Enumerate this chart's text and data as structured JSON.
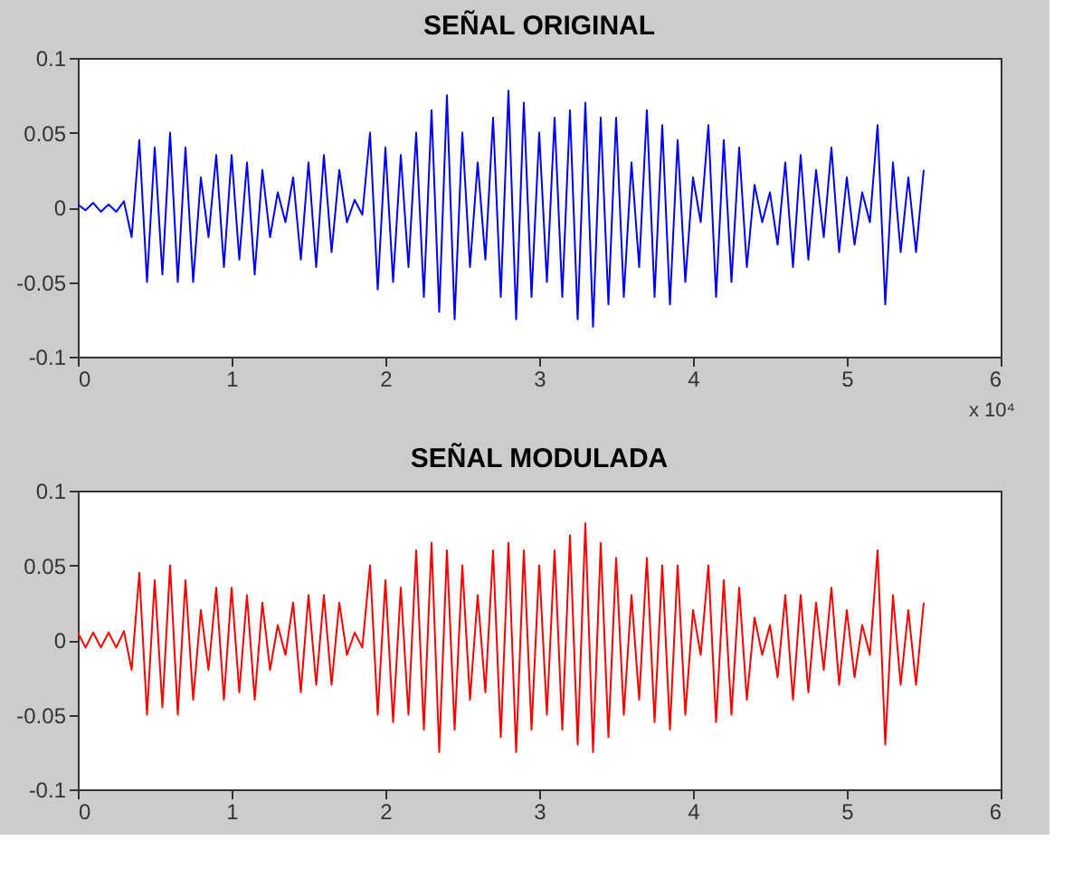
{
  "chart_data": [
    {
      "type": "line",
      "title": "SEÑAL ORIGINAL",
      "annotations": [
        "x 10⁴"
      ],
      "x": [
        0,
        0.05,
        0.1,
        0.15,
        0.2,
        0.25,
        0.3,
        0.35,
        0.4,
        0.45,
        0.5,
        0.55,
        0.6,
        0.65,
        0.7,
        0.75,
        0.8,
        0.85,
        0.9,
        0.95,
        1,
        1.05,
        1.1,
        1.15,
        1.2,
        1.25,
        1.3,
        1.35,
        1.4,
        1.45,
        1.5,
        1.55,
        1.6,
        1.65,
        1.7,
        1.75,
        1.8,
        1.85,
        1.9,
        1.95,
        2,
        2.05,
        2.1,
        2.15,
        2.2,
        2.25,
        2.3,
        2.35,
        2.4,
        2.45,
        2.5,
        2.55,
        2.6,
        2.65,
        2.7,
        2.75,
        2.8,
        2.85,
        2.9,
        2.95,
        3,
        3.05,
        3.1,
        3.15,
        3.2,
        3.25,
        3.3,
        3.35,
        3.4,
        3.45,
        3.5,
        3.55,
        3.6,
        3.65,
        3.7,
        3.75,
        3.8,
        3.85,
        3.9,
        3.95,
        4,
        4.05,
        4.1,
        4.15,
        4.2,
        4.25,
        4.3,
        4.35,
        4.4,
        4.45,
        4.5,
        4.55,
        4.6,
        4.65,
        4.7,
        4.75,
        4.8,
        4.85,
        4.9,
        4.95,
        5,
        5.05,
        5.1,
        5.15,
        5.2,
        5.25,
        5.3,
        5.35,
        5.4,
        5.45,
        5.5
      ],
      "series": [
        {
          "color": "#0000ff",
          "values": [
            0.002,
            -0.002,
            0.003,
            -0.003,
            0.002,
            -0.003,
            0.004,
            -0.02,
            0.045,
            -0.05,
            0.04,
            -0.045,
            0.05,
            -0.05,
            0.04,
            -0.05,
            0.02,
            -0.02,
            0.035,
            -0.04,
            0.035,
            -0.035,
            0.03,
            -0.045,
            0.025,
            -0.02,
            0.01,
            -0.01,
            0.02,
            -0.035,
            0.03,
            -0.04,
            0.035,
            -0.03,
            0.025,
            -0.01,
            0.005,
            -0.005,
            0.05,
            -0.055,
            0.04,
            -0.05,
            0.035,
            -0.04,
            0.05,
            -0.06,
            0.065,
            -0.07,
            0.075,
            -0.075,
            0.05,
            -0.04,
            0.03,
            -0.035,
            0.06,
            -0.06,
            0.078,
            -0.075,
            0.07,
            -0.06,
            0.05,
            -0.05,
            0.06,
            -0.06,
            0.065,
            -0.075,
            0.07,
            -0.08,
            0.06,
            -0.065,
            0.06,
            -0.06,
            0.03,
            -0.04,
            0.065,
            -0.06,
            0.055,
            -0.065,
            0.045,
            -0.05,
            0.02,
            -0.01,
            0.055,
            -0.06,
            0.045,
            -0.05,
            0.04,
            -0.04,
            0.015,
            -0.01,
            0.01,
            -0.025,
            0.03,
            -0.04,
            0.035,
            -0.035,
            0.025,
            -0.02,
            0.04,
            -0.03,
            0.02,
            -0.025,
            0.01,
            -0.01,
            0.055,
            -0.065,
            0.03,
            -0.03,
            0.02,
            -0.03,
            0.025
          ]
        }
      ],
      "xlim": [
        0,
        6
      ],
      "xticks": [
        0,
        1,
        2,
        3,
        4,
        5,
        6
      ],
      "ylim": [
        -0.1,
        0.1
      ],
      "yticks": [
        -0.1,
        -0.05,
        0,
        0.05,
        0.1
      ],
      "grid": false
    },
    {
      "type": "line",
      "title": "SEÑAL MODULADA",
      "x": [
        0,
        0.05,
        0.1,
        0.15,
        0.2,
        0.25,
        0.3,
        0.35,
        0.4,
        0.45,
        0.5,
        0.55,
        0.6,
        0.65,
        0.7,
        0.75,
        0.8,
        0.85,
        0.9,
        0.95,
        1,
        1.05,
        1.1,
        1.15,
        1.2,
        1.25,
        1.3,
        1.35,
        1.4,
        1.45,
        1.5,
        1.55,
        1.6,
        1.65,
        1.7,
        1.75,
        1.8,
        1.85,
        1.9,
        1.95,
        2,
        2.05,
        2.1,
        2.15,
        2.2,
        2.25,
        2.3,
        2.35,
        2.4,
        2.45,
        2.5,
        2.55,
        2.6,
        2.65,
        2.7,
        2.75,
        2.8,
        2.85,
        2.9,
        2.95,
        3,
        3.05,
        3.1,
        3.15,
        3.2,
        3.25,
        3.3,
        3.35,
        3.4,
        3.45,
        3.5,
        3.55,
        3.6,
        3.65,
        3.7,
        3.75,
        3.8,
        3.85,
        3.9,
        3.95,
        4,
        4.05,
        4.1,
        4.15,
        4.2,
        4.25,
        4.3,
        4.35,
        4.4,
        4.45,
        4.5,
        4.55,
        4.6,
        4.65,
        4.7,
        4.75,
        4.8,
        4.85,
        4.9,
        4.95,
        5,
        5.05,
        5.1,
        5.15,
        5.2,
        5.25,
        5.3,
        5.35,
        5.4,
        5.45,
        5.5
      ],
      "series": [
        {
          "color": "#ff0000",
          "values": [
            0.005,
            -0.005,
            0.005,
            -0.005,
            0.005,
            -0.005,
            0.006,
            -0.02,
            0.045,
            -0.05,
            0.04,
            -0.045,
            0.05,
            -0.05,
            0.04,
            -0.04,
            0.02,
            -0.02,
            0.035,
            -0.04,
            0.035,
            -0.035,
            0.03,
            -0.04,
            0.025,
            -0.02,
            0.01,
            -0.01,
            0.025,
            -0.035,
            0.03,
            -0.03,
            0.03,
            -0.03,
            0.025,
            -0.01,
            0.005,
            -0.005,
            0.05,
            -0.05,
            0.04,
            -0.055,
            0.035,
            -0.05,
            0.06,
            -0.06,
            0.065,
            -0.075,
            0.06,
            -0.06,
            0.05,
            -0.04,
            0.03,
            -0.035,
            0.06,
            -0.065,
            0.065,
            -0.075,
            0.06,
            -0.06,
            0.05,
            -0.05,
            0.06,
            -0.06,
            0.07,
            -0.07,
            0.078,
            -0.075,
            0.065,
            -0.065,
            0.055,
            -0.05,
            0.03,
            -0.04,
            0.055,
            -0.055,
            0.05,
            -0.06,
            0.05,
            -0.05,
            0.02,
            -0.01,
            0.05,
            -0.055,
            0.04,
            -0.05,
            0.035,
            -0.04,
            0.015,
            -0.01,
            0.01,
            -0.025,
            0.03,
            -0.04,
            0.03,
            -0.035,
            0.025,
            -0.02,
            0.035,
            -0.03,
            0.02,
            -0.025,
            0.01,
            -0.01,
            0.06,
            -0.07,
            0.03,
            -0.03,
            0.02,
            -0.03,
            0.025
          ]
        }
      ],
      "xlim": [
        0,
        6
      ],
      "xticks": [
        0,
        1,
        2,
        3,
        4,
        5,
        6
      ],
      "ylim": [
        -0.1,
        0.1
      ],
      "yticks": [
        -0.1,
        -0.05,
        0,
        0.05,
        0.1
      ],
      "grid": false
    }
  ]
}
